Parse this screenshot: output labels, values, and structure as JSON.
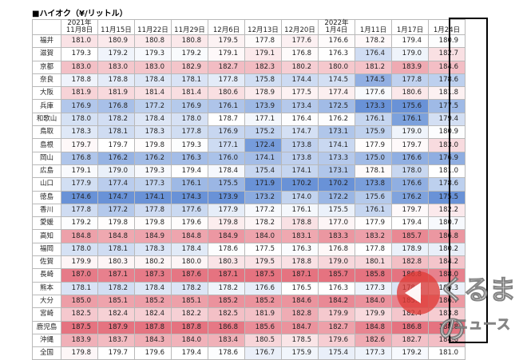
{
  "title": "■ハイオク（¥/リットル）",
  "colors": {
    "high": "#e05a6a",
    "low": "#4e7fd0",
    "mid": "#ffffff"
  },
  "columns": [
    {
      "year": "2021年",
      "date": "11月8日"
    },
    {
      "year": "",
      "date": "11月15日"
    },
    {
      "year": "",
      "date": "11月22日"
    },
    {
      "year": "",
      "date": "11月29日"
    },
    {
      "year": "",
      "date": "12月6日"
    },
    {
      "year": "",
      "date": "12月13日"
    },
    {
      "year": "",
      "date": "12月20日"
    },
    {
      "year": "2022年",
      "date": "1月4日"
    },
    {
      "year": "",
      "date": "1月11日"
    },
    {
      "year": "",
      "date": "1月17日"
    },
    {
      "year": "",
      "date": "1月24日"
    }
  ],
  "rows": [
    {
      "pref": "福井",
      "values": [
        "181.0",
        "180.9",
        "180.8",
        "180.8",
        "179.5",
        "177.8",
        "177.6",
        "176.6",
        "178.2",
        "179.4",
        "180.9"
      ]
    },
    {
      "pref": "滋賀",
      "values": [
        "179.3",
        "179.2",
        "179.3",
        "179.2",
        "179.1",
        "179.1",
        "176.8",
        "176.3",
        "176.4",
        "179.0",
        "182.7"
      ]
    },
    {
      "pref": "京都",
      "values": [
        "183.0",
        "183.0",
        "183.0",
        "182.9",
        "182.7",
        "182.3",
        "180.2",
        "180.0",
        "181.2",
        "183.9",
        "184.6"
      ]
    },
    {
      "pref": "奈良",
      "values": [
        "178.8",
        "178.8",
        "178.4",
        "178.1",
        "177.8",
        "175.8",
        "174.4",
        "174.5",
        "174.5",
        "177.8",
        "178.6"
      ]
    },
    {
      "pref": "大阪",
      "values": [
        "181.9",
        "181.9",
        "181.4",
        "181.4",
        "180.6",
        "178.9",
        "177.5",
        "177.4",
        "177.6",
        "180.6",
        "181.8"
      ]
    },
    {
      "pref": "兵庫",
      "values": [
        "176.9",
        "176.8",
        "177.2",
        "176.9",
        "176.1",
        "173.9",
        "173.4",
        "172.5",
        "173.3",
        "175.6",
        "177.5"
      ]
    },
    {
      "pref": "和歌山",
      "values": [
        "178.0",
        "178.2",
        "178.4",
        "178.0",
        "178.7",
        "177.1",
        "176.4",
        "176.2",
        "176.1",
        "176.1",
        "179.4"
      ]
    },
    {
      "pref": "鳥取",
      "values": [
        "178.3",
        "178.1",
        "178.3",
        "177.8",
        "176.9",
        "175.2",
        "174.7",
        "173.1",
        "175.9",
        "179.0",
        "180.9"
      ]
    },
    {
      "pref": "島根",
      "values": [
        "179.7",
        "179.7",
        "179.8",
        "179.3",
        "177.1",
        "172.4",
        "173.8",
        "174.1",
        "177.9",
        "179.7",
        "183.0"
      ]
    },
    {
      "pref": "岡山",
      "values": [
        "176.8",
        "176.2",
        "176.2",
        "176.3",
        "176.0",
        "174.1",
        "173.8",
        "173.3",
        "175.0",
        "176.6",
        "176.9"
      ]
    },
    {
      "pref": "広島",
      "values": [
        "179.1",
        "179.0",
        "179.3",
        "179.4",
        "178.4",
        "175.4",
        "174.1",
        "173.1",
        "178.1",
        "178.0",
        "181.0"
      ]
    },
    {
      "pref": "山口",
      "values": [
        "177.9",
        "177.4",
        "177.3",
        "176.1",
        "175.5",
        "171.9",
        "170.2",
        "170.2",
        "173.8",
        "176.6",
        "178.6"
      ]
    },
    {
      "pref": "徳島",
      "values": [
        "174.6",
        "174.7",
        "174.1",
        "174.3",
        "173.9",
        "173.2",
        "174.0",
        "172.2",
        "175.6",
        "176.2",
        "175.5"
      ]
    },
    {
      "pref": "香川",
      "values": [
        "177.8",
        "177.2",
        "177.8",
        "177.6",
        "177.9",
        "177.2",
        "176.1",
        "175.5",
        "176.1",
        "179.7",
        "182.2"
      ]
    },
    {
      "pref": "愛媛",
      "values": [
        "179.2",
        "179.8",
        "179.8",
        "179.6",
        "179.8",
        "178.2",
        "178.8",
        "177.0",
        "177.9",
        "179.4",
        "180.7"
      ]
    },
    {
      "pref": "高知",
      "values": [
        "184.8",
        "184.8",
        "184.9",
        "184.8",
        "184.9",
        "184.0",
        "183.1",
        "183.3",
        "183.2",
        "185.7",
        "186.8"
      ]
    },
    {
      "pref": "福岡",
      "values": [
        "178.0",
        "178.1",
        "178.3",
        "178.4",
        "178.6",
        "177.5",
        "176.3",
        "176.8",
        "177.8",
        "178.9",
        "180.2"
      ]
    },
    {
      "pref": "佐賀",
      "values": [
        "179.9",
        "180.3",
        "180.2",
        "180.0",
        "180.3",
        "179.5",
        "178.8",
        "179.0",
        "180.1",
        "182.8",
        "184.2"
      ]
    },
    {
      "pref": "長崎",
      "values": [
        "187.0",
        "187.1",
        "187.3",
        "187.6",
        "187.1",
        "187.5",
        "187.1",
        "185.7",
        "185.8",
        "186.8",
        "188.0"
      ]
    },
    {
      "pref": "熊本",
      "values": [
        "178.1",
        "178.2",
        "178.4",
        "178.2",
        "178.2",
        "176.6",
        "176.5",
        "176.3",
        "177.3",
        "178.5",
        "180.3"
      ]
    },
    {
      "pref": "大分",
      "values": [
        "185.0",
        "185.1",
        "185.2",
        "185.1",
        "185.2",
        "185.2",
        "184.6",
        "184.2",
        "184.0",
        "185.9",
        "186.7"
      ]
    },
    {
      "pref": "宮崎",
      "values": [
        "182.5",
        "182.4",
        "182.4",
        "182.2",
        "182.5",
        "181.9",
        "182.8",
        "179.9",
        "179.9",
        "182.4",
        "183.8"
      ]
    },
    {
      "pref": "鹿児島",
      "values": [
        "187.5",
        "187.9",
        "187.8",
        "187.8",
        "186.8",
        "185.6",
        "184.7",
        "182.7",
        "184.8",
        "186.8",
        "188.8"
      ]
    },
    {
      "pref": "沖縄",
      "values": [
        "183.9",
        "183.7",
        "184.3",
        "184.0",
        "183.4",
        "180.5",
        "178.5",
        "179.6",
        "182.6",
        "182.7",
        "184.6"
      ]
    },
    {
      "pref": "全国",
      "values": [
        "179.8",
        "179.7",
        "179.6",
        "179.4",
        "178.6",
        "176.7",
        "175.9",
        "175.4",
        "177.3",
        "179.2",
        "181.0"
      ]
    }
  ],
  "watermark": {
    "line1": "くるまの",
    "line2": "ニュース"
  }
}
